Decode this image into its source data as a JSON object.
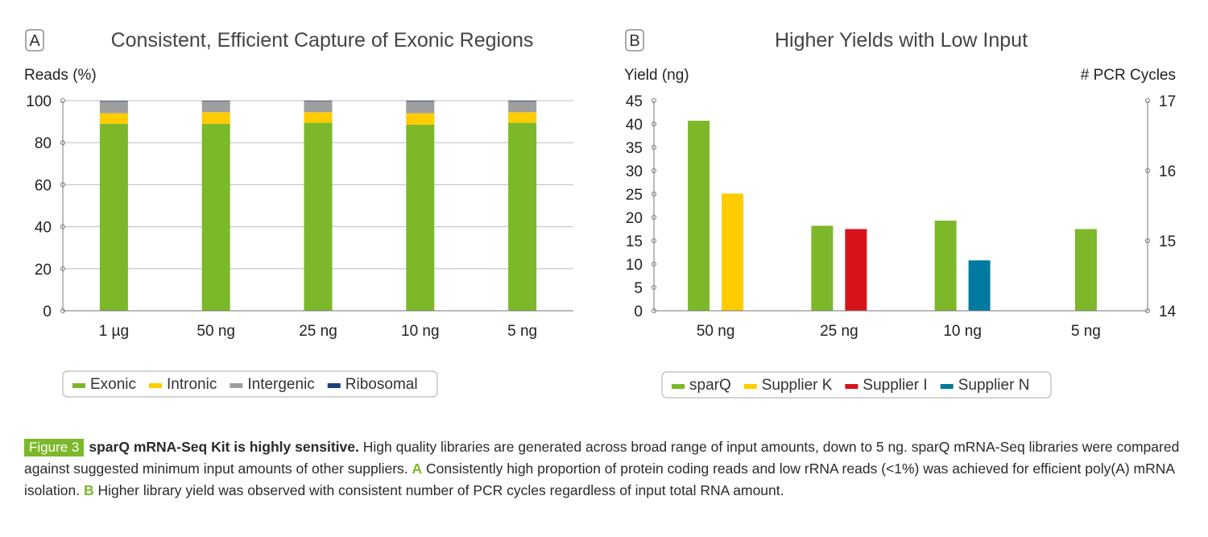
{
  "colors": {
    "green": "#7cb82a",
    "yellow": "#ffcc00",
    "gray": "#9e9e9e",
    "navy": "#1b3f7a",
    "red": "#d7131b",
    "blue": "#007aa0",
    "axis": "#777777",
    "grid": "#bdbdbd"
  },
  "chart_data": [
    {
      "panel": "A",
      "type": "bar",
      "stacked": true,
      "title": "Consistent, Efficient Capture of Exonic Regions",
      "ylabel": "Reads (%)",
      "ylim": [
        0,
        100
      ],
      "yticks": [
        0,
        20,
        40,
        60,
        80,
        100
      ],
      "grid": true,
      "categories": [
        "1 µg",
        "50 ng",
        "25 ng",
        "10 ng",
        "5 ng"
      ],
      "series": [
        {
          "name": "Exonic",
          "color": "#7cb82a",
          "values": [
            89,
            89,
            89.5,
            88.5,
            89.5
          ]
        },
        {
          "name": "Intronic",
          "color": "#ffcc00",
          "values": [
            5,
            5.5,
            5,
            5.5,
            5
          ]
        },
        {
          "name": "Intergenic",
          "color": "#9e9e9e",
          "values": [
            5.5,
            5.3,
            5.3,
            5.7,
            5.2
          ]
        },
        {
          "name": "Ribosomal",
          "color": "#1b3f7a",
          "values": [
            0.3,
            0.2,
            0.2,
            0.3,
            0.3
          ]
        }
      ],
      "legend": "bottom"
    },
    {
      "panel": "B",
      "type": "bar",
      "title": "Higher Yields with Low Input",
      "ylabel": "Yield (ng)",
      "ylim": [
        0,
        45
      ],
      "yticks": [
        0,
        5,
        10,
        15,
        20,
        25,
        30,
        35,
        40,
        45
      ],
      "y2label": "# PCR Cycles",
      "y2lim": [
        14,
        17
      ],
      "y2ticks": [
        14,
        15,
        16,
        17
      ],
      "grid": false,
      "categories": [
        "50 ng",
        "25 ng",
        "10 ng",
        "5 ng"
      ],
      "series": [
        {
          "name": "sparQ",
          "color": "#7cb82a",
          "values": [
            40.7,
            18.2,
            19.3,
            17.5
          ]
        },
        {
          "name": "Supplier K",
          "color": "#ffcc00",
          "values": [
            25.1,
            null,
            null,
            null
          ]
        },
        {
          "name": "Supplier I",
          "color": "#d7131b",
          "values": [
            null,
            17.5,
            null,
            null
          ]
        },
        {
          "name": "Supplier N",
          "color": "#007aa0",
          "values": [
            null,
            null,
            10.8,
            null
          ]
        }
      ],
      "legend": "bottom"
    }
  ],
  "caption": {
    "badge": "Figure 3",
    "bold": "sparQ mRNA-Seq Kit is highly sensitive.",
    "text1": " High quality libraries are generated across broad range of input amounts, down to 5 ng. sparQ mRNA-Seq libraries were compared against suggested minimum input amounts of other suppliers. ",
    "labelA": "A",
    "text2": " Consistently high proportion of protein coding reads and low rRNA reads (<1%) was achieved for efficient poly(A) mRNA isolation. ",
    "labelB": "B",
    "text3": " Higher library yield was observed with consistent number of PCR cycles regardless of input total RNA amount."
  }
}
